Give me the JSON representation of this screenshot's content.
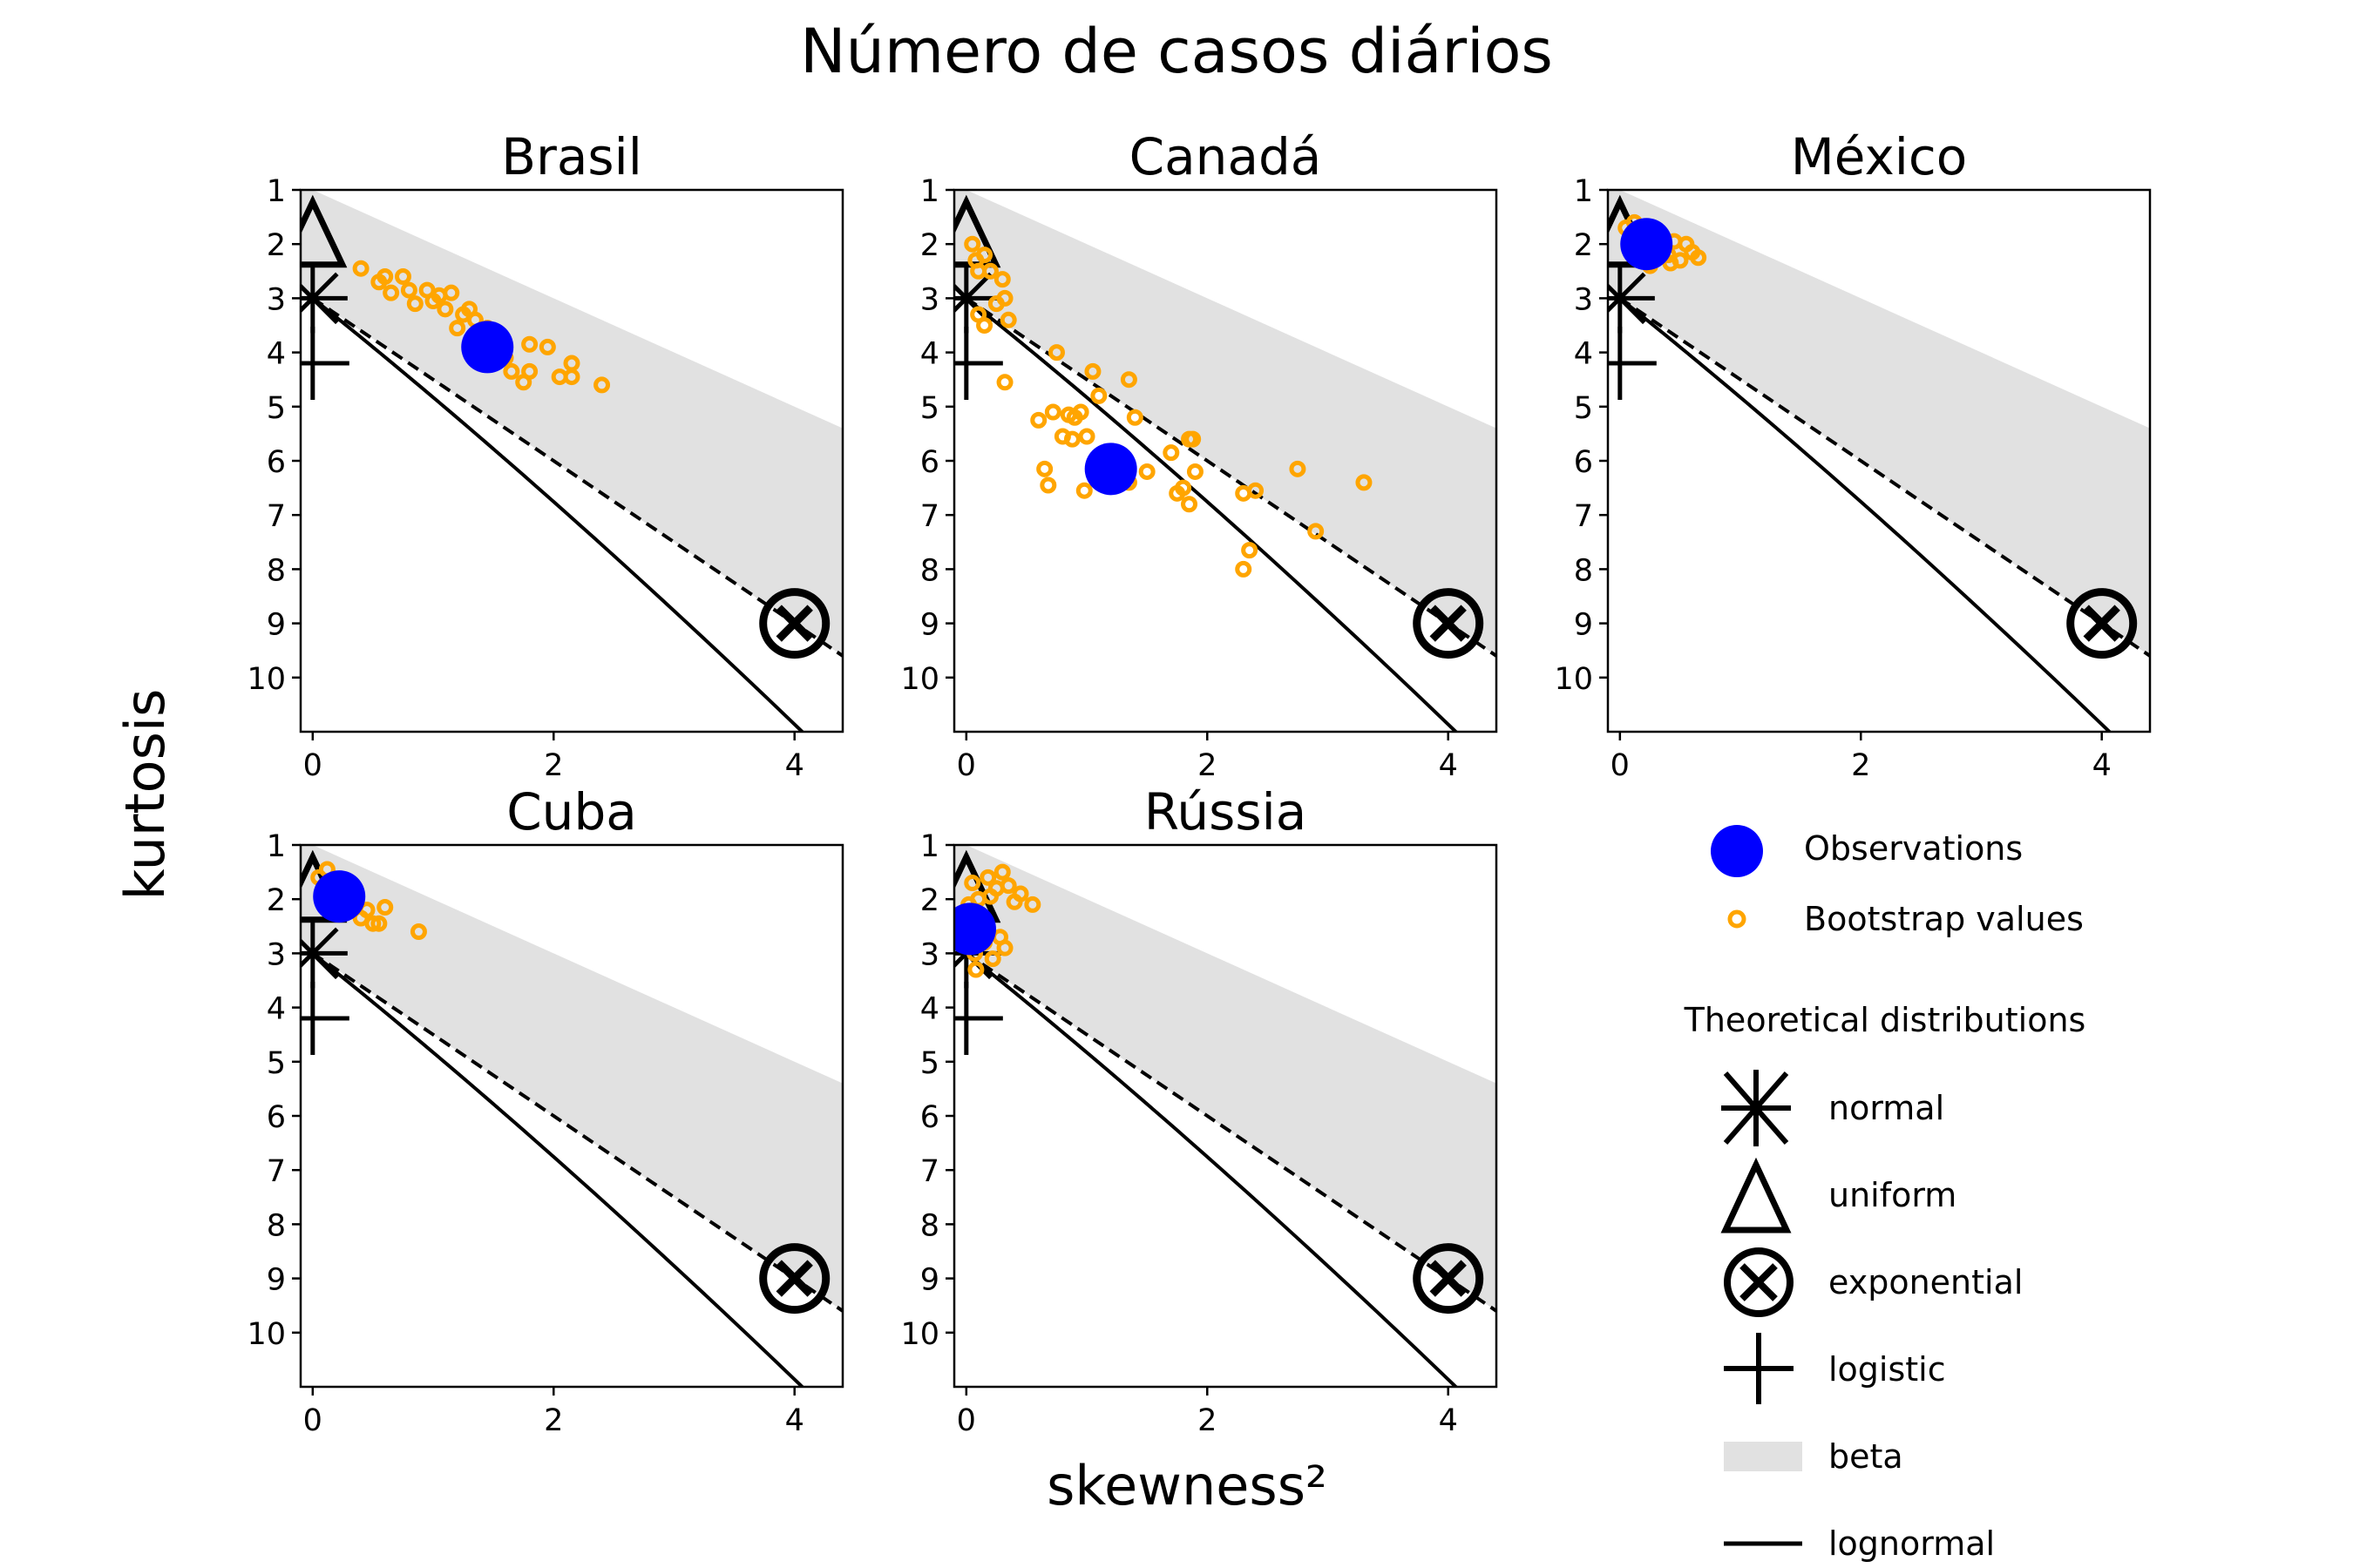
{
  "figure": {
    "title": "Número de casos diários",
    "xlabel": "skewness²",
    "ylabel": "kurtosis"
  },
  "colors": {
    "observation": "#0000ff",
    "bootstrap": "#ffa500",
    "beta_region": "#e1e1e1",
    "theoretical": "#000000"
  },
  "chart_data": [
    {
      "type": "scatter",
      "title": "Brasil",
      "xlim": [
        -0.1,
        4.4
      ],
      "ylim": [
        11,
        1
      ],
      "xticks": [
        "0",
        "2",
        "4"
      ],
      "yticks": [
        "1",
        "2",
        "3",
        "4",
        "5",
        "6",
        "7",
        "8",
        "9",
        "10"
      ],
      "observation": [
        1.45,
        3.9
      ],
      "bootstrap": [
        [
          0.4,
          2.45
        ],
        [
          0.55,
          2.7
        ],
        [
          0.6,
          2.6
        ],
        [
          0.65,
          2.9
        ],
        [
          0.75,
          2.6
        ],
        [
          0.8,
          2.85
        ],
        [
          0.85,
          3.1
        ],
        [
          0.95,
          2.85
        ],
        [
          1.0,
          3.05
        ],
        [
          1.05,
          2.95
        ],
        [
          1.1,
          3.2
        ],
        [
          1.15,
          2.9
        ],
        [
          1.2,
          3.55
        ],
        [
          1.25,
          3.3
        ],
        [
          1.3,
          3.2
        ],
        [
          1.35,
          3.4
        ],
        [
          1.4,
          3.6
        ],
        [
          1.45,
          3.55
        ],
        [
          1.5,
          3.75
        ],
        [
          1.55,
          3.7
        ],
        [
          1.6,
          4.1
        ],
        [
          1.65,
          4.35
        ],
        [
          1.75,
          4.55
        ],
        [
          1.8,
          3.85
        ],
        [
          1.8,
          4.35
        ],
        [
          1.95,
          3.9
        ],
        [
          2.05,
          4.45
        ],
        [
          2.15,
          4.2
        ],
        [
          2.15,
          4.45
        ],
        [
          2.4,
          4.6
        ]
      ]
    },
    {
      "type": "scatter",
      "title": "Canadá",
      "xlim": [
        -0.1,
        4.4
      ],
      "ylim": [
        11,
        1
      ],
      "xticks": [
        "0",
        "2",
        "4"
      ],
      "yticks": [
        "1",
        "2",
        "3",
        "4",
        "5",
        "6",
        "7",
        "8",
        "9",
        "10"
      ],
      "observation": [
        1.2,
        6.15
      ],
      "bootstrap": [
        [
          0.05,
          2.0
        ],
        [
          0.08,
          2.3
        ],
        [
          0.1,
          2.5
        ],
        [
          0.15,
          2.2
        ],
        [
          0.2,
          2.5
        ],
        [
          0.25,
          3.1
        ],
        [
          0.3,
          2.65
        ],
        [
          0.32,
          3.0
        ],
        [
          0.35,
          3.4
        ],
        [
          0.15,
          3.5
        ],
        [
          0.1,
          3.3
        ],
        [
          0.32,
          4.55
        ],
        [
          0.6,
          5.25
        ],
        [
          0.65,
          6.15
        ],
        [
          0.68,
          6.45
        ],
        [
          0.72,
          5.1
        ],
        [
          0.75,
          4.0
        ],
        [
          0.8,
          5.55
        ],
        [
          0.85,
          5.15
        ],
        [
          0.88,
          5.6
        ],
        [
          0.9,
          5.2
        ],
        [
          0.95,
          5.1
        ],
        [
          0.98,
          6.55
        ],
        [
          1.0,
          5.55
        ],
        [
          1.05,
          4.35
        ],
        [
          1.1,
          4.8
        ],
        [
          1.35,
          4.5
        ],
        [
          1.4,
          5.2
        ],
        [
          1.5,
          6.2
        ],
        [
          1.35,
          6.4
        ],
        [
          1.7,
          5.85
        ],
        [
          1.75,
          6.6
        ],
        [
          1.8,
          6.5
        ],
        [
          1.85,
          5.6
        ],
        [
          1.88,
          5.6
        ],
        [
          1.85,
          6.8
        ],
        [
          1.9,
          6.2
        ],
        [
          2.3,
          6.6
        ],
        [
          2.4,
          6.55
        ],
        [
          2.35,
          7.65
        ],
        [
          2.3,
          8.0
        ],
        [
          2.75,
          6.15
        ],
        [
          2.9,
          7.3
        ],
        [
          3.3,
          6.4
        ]
      ]
    },
    {
      "type": "scatter",
      "title": "México",
      "xlim": [
        -0.1,
        4.4
      ],
      "ylim": [
        11,
        1
      ],
      "xticks": [
        "0",
        "2",
        "4"
      ],
      "yticks": [
        "1",
        "2",
        "3",
        "4",
        "5",
        "6",
        "7",
        "8",
        "9",
        "10"
      ],
      "observation": [
        0.22,
        2.0
      ],
      "bootstrap": [
        [
          0.05,
          1.7
        ],
        [
          0.1,
          1.95
        ],
        [
          0.12,
          1.6
        ],
        [
          0.15,
          2.2
        ],
        [
          0.2,
          1.75
        ],
        [
          0.25,
          2.4
        ],
        [
          0.3,
          1.85
        ],
        [
          0.35,
          2.05
        ],
        [
          0.4,
          2.2
        ],
        [
          0.42,
          2.35
        ],
        [
          0.45,
          1.95
        ],
        [
          0.5,
          2.3
        ],
        [
          0.55,
          2.0
        ],
        [
          0.6,
          2.15
        ],
        [
          0.65,
          2.25
        ]
      ]
    },
    {
      "type": "scatter",
      "title": "Cuba",
      "xlim": [
        -0.1,
        4.4
      ],
      "ylim": [
        11,
        1
      ],
      "xticks": [
        "0",
        "2",
        "4"
      ],
      "yticks": [
        "1",
        "2",
        "3",
        "4",
        "5",
        "6",
        "7",
        "8",
        "9",
        "10"
      ],
      "observation": [
        0.22,
        1.95
      ],
      "bootstrap": [
        [
          0.05,
          1.6
        ],
        [
          0.1,
          1.75
        ],
        [
          0.12,
          1.45
        ],
        [
          0.15,
          2.0
        ],
        [
          0.2,
          1.65
        ],
        [
          0.25,
          2.2
        ],
        [
          0.3,
          1.9
        ],
        [
          0.35,
          2.1
        ],
        [
          0.4,
          2.35
        ],
        [
          0.45,
          2.2
        ],
        [
          0.5,
          2.45
        ],
        [
          0.55,
          2.45
        ],
        [
          0.6,
          2.15
        ],
        [
          0.88,
          2.6
        ]
      ]
    },
    {
      "type": "scatter",
      "title": "Rússia",
      "xlim": [
        -0.1,
        4.4
      ],
      "ylim": [
        11,
        1
      ],
      "xticks": [
        "0",
        "2",
        "4"
      ],
      "yticks": [
        "1",
        "2",
        "3",
        "4",
        "5",
        "6",
        "7",
        "8",
        "9",
        "10"
      ],
      "observation": [
        0.03,
        2.55
      ],
      "bootstrap": [
        [
          0.02,
          2.1
        ],
        [
          0.05,
          1.7
        ],
        [
          0.07,
          3.0
        ],
        [
          0.08,
          3.3
        ],
        [
          0.1,
          2.0
        ],
        [
          0.12,
          2.5
        ],
        [
          0.15,
          2.8
        ],
        [
          0.18,
          1.6
        ],
        [
          0.2,
          1.95
        ],
        [
          0.22,
          3.1
        ],
        [
          0.25,
          1.8
        ],
        [
          0.28,
          2.7
        ],
        [
          0.3,
          1.5
        ],
        [
          0.32,
          2.9
        ],
        [
          0.35,
          1.75
        ],
        [
          0.4,
          2.05
        ],
        [
          0.45,
          1.9
        ],
        [
          0.55,
          2.1
        ]
      ]
    }
  ],
  "theoretical": {
    "normal": [
      0,
      3
    ],
    "uniform": [
      0,
      1.8
    ],
    "exponential": [
      4,
      9
    ],
    "logistic": [
      0,
      4.2
    ]
  },
  "legend": {
    "observations": "Observations",
    "bootstrap": "Bootstrap values",
    "theoretical_title": "Theoretical distributions",
    "normal": "normal",
    "uniform": "uniform",
    "exponential": "exponential",
    "logistic": "logistic",
    "beta": "beta",
    "lognormal": "lognormal"
  }
}
